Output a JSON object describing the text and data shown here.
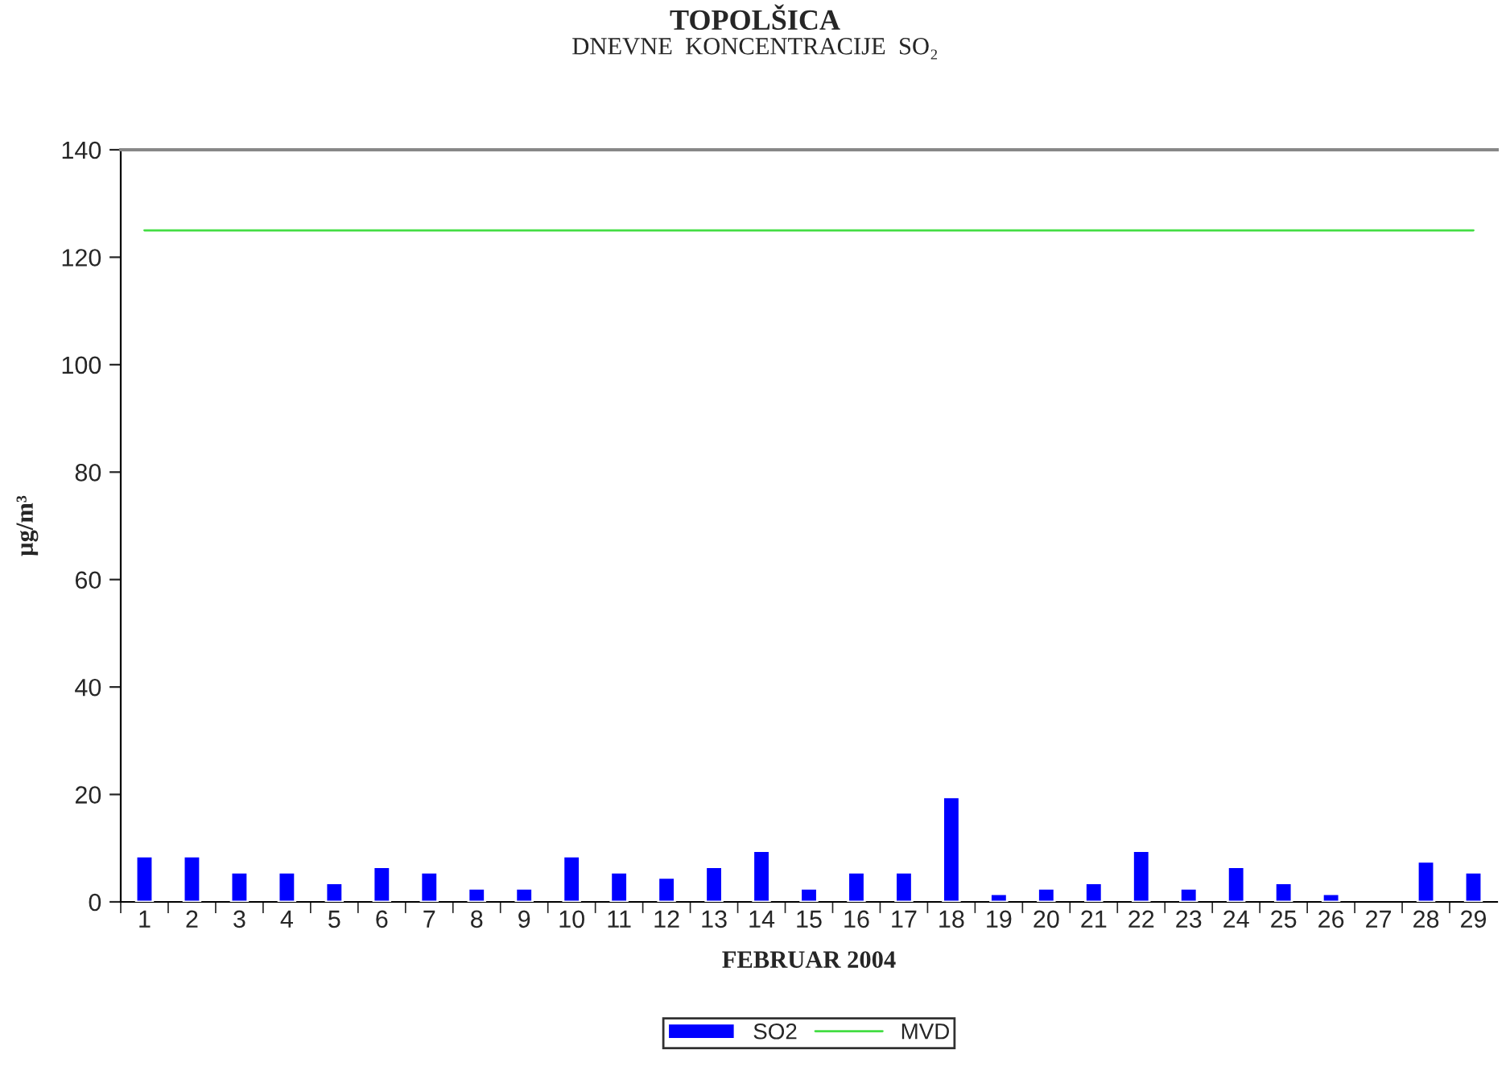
{
  "chart_data": {
    "type": "bar",
    "title": "TOPOLŠICA",
    "subtitle": "DNEVNE  KONCENTRACIJE  SO₂",
    "xlabel": "FEBRUAR 2004",
    "ylabel": "µg/m³",
    "categories": [
      "1",
      "2",
      "3",
      "4",
      "5",
      "6",
      "7",
      "8",
      "9",
      "10",
      "11",
      "12",
      "13",
      "14",
      "15",
      "16",
      "17",
      "18",
      "19",
      "20",
      "21",
      "22",
      "23",
      "24",
      "25",
      "26",
      "27",
      "28",
      "29"
    ],
    "series": [
      {
        "name": "SO2",
        "color": "#0000ff",
        "values": [
          8.5,
          8.5,
          5.5,
          5.5,
          3.5,
          6.5,
          5.5,
          2.5,
          2.5,
          8.5,
          5.5,
          4.5,
          6.5,
          9.5,
          2.5,
          5.5,
          5.5,
          19.5,
          1.5,
          2.5,
          3.5,
          9.5,
          2.5,
          6.5,
          3.5,
          1.5,
          null,
          7.5,
          5.5
        ]
      },
      {
        "name": "MVD",
        "type": "line",
        "color": "#44dd44",
        "values": [
          125,
          125,
          125,
          125,
          125,
          125,
          125,
          125,
          125,
          125,
          125,
          125,
          125,
          125,
          125,
          125,
          125,
          125,
          125,
          125,
          125,
          125,
          125,
          125,
          125,
          125,
          125,
          125,
          125
        ]
      }
    ],
    "ylim": [
      0,
      140
    ],
    "yticks": [
      0,
      20,
      40,
      60,
      80,
      100,
      120,
      140
    ],
    "grid": false,
    "legend": "bottom"
  }
}
